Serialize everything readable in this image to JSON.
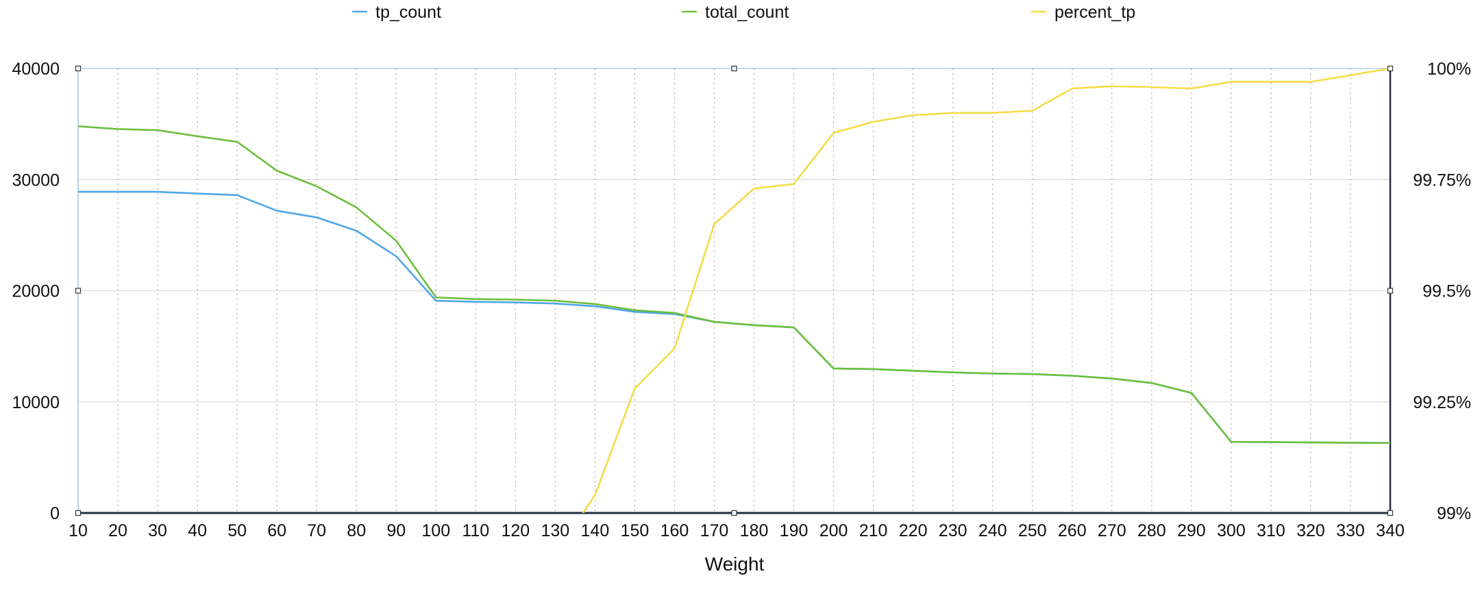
{
  "chart_data": {
    "type": "line",
    "title": "",
    "xlabel": "Weight",
    "ylabel": "",
    "y2label": "",
    "x": [
      10,
      20,
      30,
      40,
      50,
      60,
      70,
      80,
      90,
      100,
      110,
      120,
      130,
      140,
      150,
      160,
      170,
      180,
      190,
      200,
      210,
      220,
      230,
      240,
      250,
      260,
      270,
      280,
      290,
      300,
      310,
      320,
      330,
      340
    ],
    "xlim": [
      10,
      340
    ],
    "ylim": [
      0,
      40000
    ],
    "y2lim": [
      99,
      100
    ],
    "y_ticks": [
      0,
      10000,
      20000,
      30000,
      40000
    ],
    "y_tick_labels": [
      "0",
      "10000",
      "20000",
      "30000",
      "40000"
    ],
    "y2_ticks": [
      99,
      99.25,
      99.5,
      99.75,
      100
    ],
    "y2_tick_labels": [
      "99%",
      "99.25%",
      "99.5%",
      "99.75%",
      "100%"
    ],
    "x_tick_labels": [
      "10",
      "20",
      "30",
      "40",
      "50",
      "60",
      "70",
      "80",
      "90",
      "100",
      "110",
      "120",
      "130",
      "140",
      "150",
      "160",
      "170",
      "180",
      "190",
      "200",
      "210",
      "220",
      "230",
      "240",
      "250",
      "260",
      "270",
      "280",
      "290",
      "300",
      "310",
      "320",
      "330",
      "340"
    ],
    "grid": true,
    "legend_position": "top",
    "series": [
      {
        "name": "tp_count",
        "axis": "left",
        "color": "#4ea6e6",
        "values": [
          28900,
          28900,
          28900,
          28750,
          28600,
          27200,
          26600,
          25400,
          23100,
          19100,
          19000,
          18950,
          18850,
          18600,
          18100,
          17900,
          17200,
          16900,
          16700,
          13000,
          12950,
          12800,
          12650,
          12550,
          12500,
          12350,
          12100,
          11700,
          10800,
          6400,
          6380,
          6350,
          6320,
          6300
        ]
      },
      {
        "name": "total_count",
        "axis": "left",
        "color": "#6cbf3c",
        "values": [
          34800,
          34550,
          34450,
          33900,
          33400,
          30800,
          29400,
          27500,
          24500,
          19400,
          19250,
          19200,
          19100,
          18800,
          18250,
          18000,
          17200,
          16900,
          16700,
          13000,
          12950,
          12800,
          12650,
          12550,
          12500,
          12350,
          12100,
          11700,
          10800,
          6400,
          6380,
          6350,
          6320,
          6300
        ]
      },
      {
        "name": "percent_tp",
        "axis": "right",
        "color": "#f4dc48",
        "x": [
          137,
          140,
          150,
          160,
          170,
          180,
          190,
          200,
          210,
          220,
          230,
          240,
          250,
          260,
          270,
          280,
          290,
          300,
          310,
          320,
          330,
          340
        ],
        "values": [
          99.0,
          99.04,
          99.28,
          99.37,
          99.65,
          99.73,
          99.74,
          99.855,
          99.88,
          99.895,
          99.9,
          99.9,
          99.905,
          99.955,
          99.96,
          99.958,
          99.955,
          99.97,
          99.97,
          99.97,
          99.985,
          100.0
        ]
      }
    ]
  }
}
